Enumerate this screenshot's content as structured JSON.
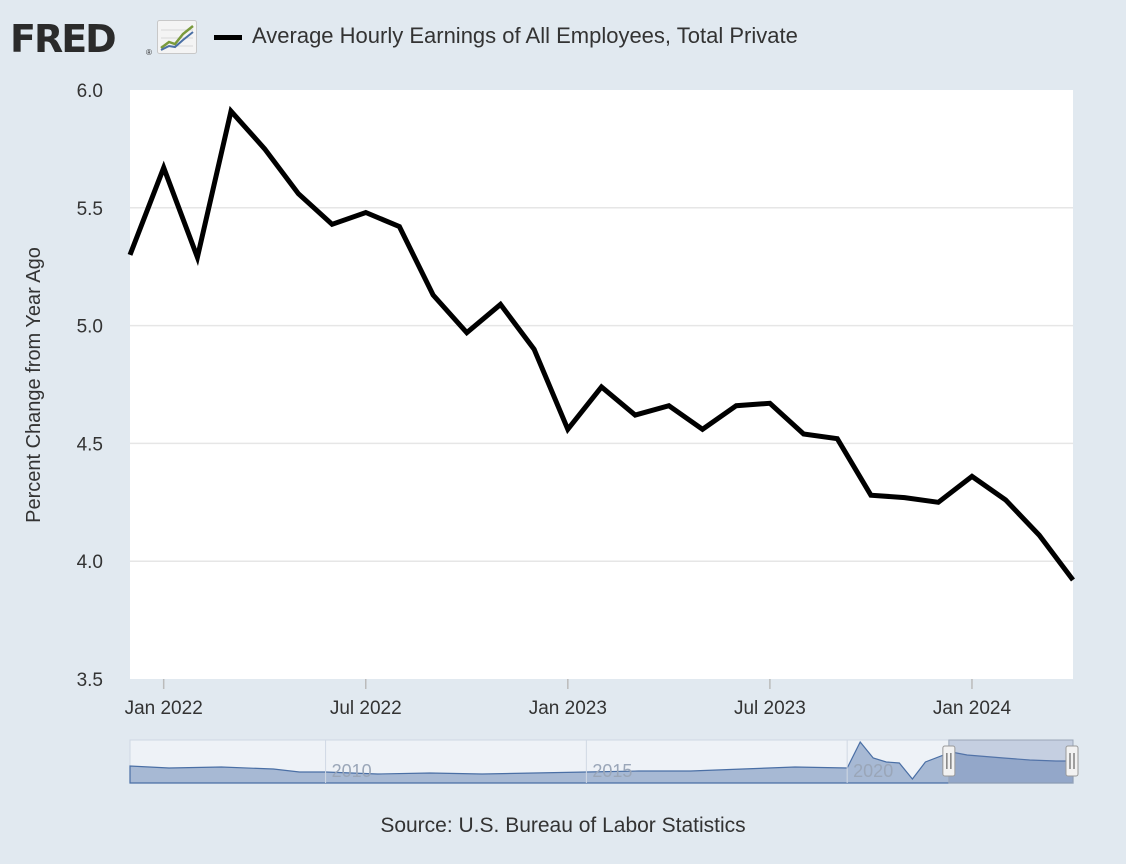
{
  "header": {
    "logo_text": "FRED",
    "logo_mark": "®",
    "icon": "line-chart-icon"
  },
  "source": "Source: U.S. Bureau of Labor Statistics",
  "navigator": {
    "labels": [
      "2010",
      "2015",
      "2020"
    ],
    "handle_icon": "grip-handle-icon"
  },
  "colors": {
    "background": "#e1e9f0",
    "plot_background": "#ffffff",
    "series_line": "#000000",
    "gridline": "#e6e6e6",
    "navigator_fill": "#8fa5c8",
    "navigator_line": "#4a6fa5"
  },
  "chart_data": {
    "type": "line",
    "title": "",
    "xlabel": "",
    "ylabel": "Percent Change from Year Ago",
    "ylim": [
      3.5,
      6.0
    ],
    "yticks": [
      "3.5",
      "4.0",
      "4.5",
      "5.0",
      "5.5",
      "6.0"
    ],
    "xticks": [
      "Jan 2022",
      "Jul 2022",
      "Jan 2023",
      "Jul 2023",
      "Jan 2024"
    ],
    "legend": "top-left",
    "grid": true,
    "series": [
      {
        "name": "Average Hourly Earnings of All Employees, Total Private",
        "x": [
          "2021-12",
          "2022-01",
          "2022-02",
          "2022-03",
          "2022-04",
          "2022-05",
          "2022-06",
          "2022-07",
          "2022-08",
          "2022-09",
          "2022-10",
          "2022-11",
          "2022-12",
          "2023-01",
          "2023-02",
          "2023-03",
          "2023-04",
          "2023-05",
          "2023-06",
          "2023-07",
          "2023-08",
          "2023-09",
          "2023-10",
          "2023-11",
          "2023-12",
          "2024-01",
          "2024-02",
          "2024-03",
          "2024-04"
        ],
        "values": [
          5.3,
          5.67,
          5.29,
          5.91,
          5.75,
          5.56,
          5.43,
          5.48,
          5.42,
          5.13,
          4.97,
          5.09,
          4.9,
          4.56,
          4.74,
          4.62,
          4.66,
          4.56,
          4.66,
          4.67,
          4.54,
          4.52,
          4.28,
          4.27,
          4.25,
          4.36,
          4.26,
          4.11,
          3.92
        ]
      }
    ]
  }
}
